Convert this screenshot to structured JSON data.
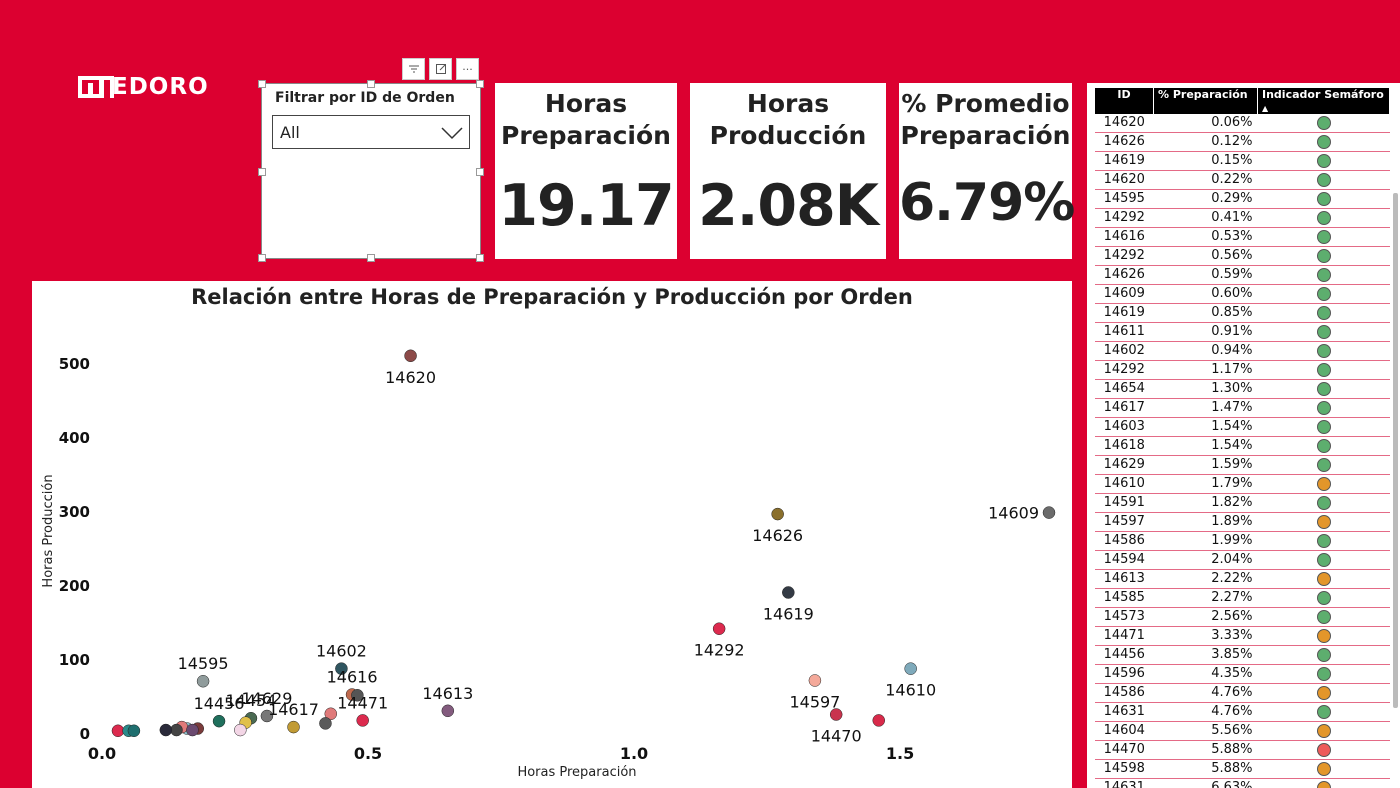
{
  "brand": {
    "name": "MEDORO",
    "logo_text": "EDORO"
  },
  "toolbar": {
    "icons": [
      "filter-icon",
      "focus-icon",
      "more-icon"
    ],
    "more_label": "···"
  },
  "slicer": {
    "title": "Filtrar por ID de Orden",
    "selected": "All"
  },
  "cards": [
    {
      "title_l1": "Horas",
      "title_l2": "Preparación",
      "value": "19.17"
    },
    {
      "title_l1": "Horas",
      "title_l2": "Producción",
      "value": "2.08K"
    },
    {
      "title_l1": "% Promedio",
      "title_l2": "Preparación",
      "value": "6.79%"
    }
  ],
  "table": {
    "headers": [
      "ID",
      "% Preparación",
      "Indicador Semáforo"
    ],
    "rows": [
      {
        "id": "14620",
        "pct": "0.06%",
        "status": "green"
      },
      {
        "id": "14626",
        "pct": "0.12%",
        "status": "green"
      },
      {
        "id": "14619",
        "pct": "0.15%",
        "status": "green"
      },
      {
        "id": "14620",
        "pct": "0.22%",
        "status": "green"
      },
      {
        "id": "14595",
        "pct": "0.29%",
        "status": "green"
      },
      {
        "id": "14292",
        "pct": "0.41%",
        "status": "green"
      },
      {
        "id": "14616",
        "pct": "0.53%",
        "status": "green"
      },
      {
        "id": "14292",
        "pct": "0.56%",
        "status": "green"
      },
      {
        "id": "14626",
        "pct": "0.59%",
        "status": "green"
      },
      {
        "id": "14609",
        "pct": "0.60%",
        "status": "green"
      },
      {
        "id": "14619",
        "pct": "0.85%",
        "status": "green"
      },
      {
        "id": "14611",
        "pct": "0.91%",
        "status": "green"
      },
      {
        "id": "14602",
        "pct": "0.94%",
        "status": "green"
      },
      {
        "id": "14292",
        "pct": "1.17%",
        "status": "green"
      },
      {
        "id": "14654",
        "pct": "1.30%",
        "status": "green"
      },
      {
        "id": "14617",
        "pct": "1.47%",
        "status": "green"
      },
      {
        "id": "14603",
        "pct": "1.54%",
        "status": "green"
      },
      {
        "id": "14618",
        "pct": "1.54%",
        "status": "green"
      },
      {
        "id": "14629",
        "pct": "1.59%",
        "status": "green"
      },
      {
        "id": "14610",
        "pct": "1.79%",
        "status": "orange"
      },
      {
        "id": "14591",
        "pct": "1.82%",
        "status": "green"
      },
      {
        "id": "14597",
        "pct": "1.89%",
        "status": "orange"
      },
      {
        "id": "14586",
        "pct": "1.99%",
        "status": "green"
      },
      {
        "id": "14594",
        "pct": "2.04%",
        "status": "green"
      },
      {
        "id": "14613",
        "pct": "2.22%",
        "status": "orange"
      },
      {
        "id": "14585",
        "pct": "2.27%",
        "status": "green"
      },
      {
        "id": "14573",
        "pct": "2.56%",
        "status": "green"
      },
      {
        "id": "14471",
        "pct": "3.33%",
        "status": "orange"
      },
      {
        "id": "14456",
        "pct": "3.85%",
        "status": "green"
      },
      {
        "id": "14596",
        "pct": "4.35%",
        "status": "green"
      },
      {
        "id": "14586",
        "pct": "4.76%",
        "status": "orange"
      },
      {
        "id": "14631",
        "pct": "4.76%",
        "status": "green"
      },
      {
        "id": "14604",
        "pct": "5.56%",
        "status": "orange"
      },
      {
        "id": "14470",
        "pct": "5.88%",
        "status": "red"
      },
      {
        "id": "14598",
        "pct": "5.88%",
        "status": "orange"
      },
      {
        "id": "14631",
        "pct": "6.63%",
        "status": "orange"
      }
    ]
  },
  "status_colors": {
    "green": "#5dae6e",
    "orange": "#e3962a",
    "red": "#ee5a5a"
  },
  "colors": {
    "background": "#dc0030"
  },
  "chart_data": {
    "type": "scatter",
    "title": "Relación entre Horas de Preparación y Producción por Orden",
    "xlabel": "Horas Preparación",
    "ylabel": "Horas Producción",
    "xlim": [
      0,
      1.78
    ],
    "ylim": [
      0,
      530
    ],
    "xticks": [
      "0.0",
      "0.5",
      "1.0",
      "1.5"
    ],
    "yticks": [
      "0",
      "100",
      "200",
      "300",
      "400",
      "500"
    ],
    "points": [
      {
        "label": "14620",
        "x": 0.58,
        "y": 510,
        "color": "#8c4a48",
        "show_label": true
      },
      {
        "label": "14626",
        "x": 1.27,
        "y": 296,
        "color": "#8a6f2c",
        "show_label": true
      },
      {
        "label": "14609",
        "x": 1.78,
        "y": 298,
        "color": "#6b6b6b",
        "show_label": true
      },
      {
        "label": "14619",
        "x": 1.29,
        "y": 190,
        "color": "#333a44",
        "show_label": true
      },
      {
        "label": "14292",
        "x": 1.16,
        "y": 141,
        "color": "#dc2a4e",
        "show_label": true
      },
      {
        "label": "14610",
        "x": 1.52,
        "y": 87,
        "color": "#7faabb",
        "show_label": true
      },
      {
        "label": "14597",
        "x": 1.34,
        "y": 71,
        "color": "#f4a99a",
        "show_label": true
      },
      {
        "label": "14470",
        "x": 1.38,
        "y": 25,
        "color": "#c9344e",
        "show_label": true
      },
      {
        "label": "14470b",
        "x": 1.46,
        "y": 17,
        "color": "#d82a4a",
        "show_label": false
      },
      {
        "label": "14613",
        "x": 0.65,
        "y": 30,
        "color": "#835b7e",
        "show_label": true
      },
      {
        "label": "14602",
        "x": 0.45,
        "y": 87,
        "color": "#2f5560",
        "show_label": true
      },
      {
        "label": "14616",
        "x": 0.47,
        "y": 52,
        "color": "#c06a4e",
        "show_label": true
      },
      {
        "label": "14616b",
        "x": 0.48,
        "y": 51,
        "color": "#555",
        "show_label": false
      },
      {
        "label": "14471",
        "x": 0.49,
        "y": 17,
        "color": "#dc2a4e",
        "show_label": true
      },
      {
        "label": "14595",
        "x": 0.19,
        "y": 70,
        "color": "#909c9c",
        "show_label": true
      },
      {
        "label": "14629",
        "x": 0.31,
        "y": 23,
        "color": "#777",
        "show_label": true
      },
      {
        "label": "14617",
        "x": 0.36,
        "y": 8,
        "color": "#c19b35",
        "show_label": true
      },
      {
        "label": "14617b",
        "x": 0.43,
        "y": 26,
        "color": "#e07a7a",
        "show_label": false
      },
      {
        "label": "14617c",
        "x": 0.42,
        "y": 13,
        "color": "#5a5a5a",
        "show_label": false
      },
      {
        "label": "14454",
        "x": 0.28,
        "y": 20,
        "color": "#4a6a52",
        "show_label": true
      },
      {
        "label": "14454b",
        "x": 0.27,
        "y": 14,
        "color": "#e0c04a",
        "show_label": false
      },
      {
        "label": "14454c",
        "x": 0.26,
        "y": 4,
        "color": "#f3d6e6",
        "show_label": false
      },
      {
        "label": "14456",
        "x": 0.22,
        "y": 16,
        "color": "#1f6f5c",
        "show_label": true
      },
      {
        "label": "14456b",
        "x": 0.18,
        "y": 6,
        "color": "#7a3a3a",
        "show_label": false
      },
      {
        "label": "14456c",
        "x": 0.16,
        "y": 6,
        "color": "#8fc0cc",
        "show_label": false
      },
      {
        "label": "14456d",
        "x": 0.15,
        "y": 8,
        "color": "#e07a7a",
        "show_label": false
      },
      {
        "label": "14456e",
        "x": 0.14,
        "y": 4,
        "color": "#444",
        "show_label": false
      },
      {
        "label": "14456f",
        "x": 0.12,
        "y": 4,
        "color": "#2a2a3a",
        "show_label": false
      },
      {
        "label": "14456g",
        "x": 0.17,
        "y": 4,
        "color": "#6b4a70",
        "show_label": false
      },
      {
        "label": "low1",
        "x": 0.03,
        "y": 3,
        "color": "#dc2a4e",
        "show_label": false
      },
      {
        "label": "low2",
        "x": 0.05,
        "y": 3,
        "color": "#2a8a8a",
        "show_label": false
      },
      {
        "label": "low3",
        "x": 0.06,
        "y": 3,
        "color": "#1f6f6f",
        "show_label": false
      }
    ]
  }
}
